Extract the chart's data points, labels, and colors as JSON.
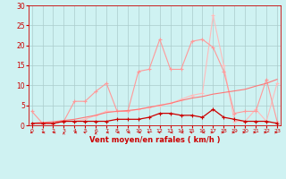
{
  "background_color": "#cff2f2",
  "grid_color": "#aacccc",
  "x": [
    0,
    1,
    2,
    3,
    4,
    5,
    6,
    7,
    8,
    9,
    10,
    11,
    12,
    13,
    14,
    15,
    16,
    17,
    18,
    19,
    20,
    21,
    22,
    23
  ],
  "series_rafales": [
    3.5,
    0.5,
    0.5,
    1.0,
    6.0,
    6.0,
    8.5,
    10.5,
    3.5,
    3.5,
    13.5,
    14.0,
    21.5,
    14.0,
    14.0,
    21.0,
    21.5,
    19.5,
    13.5,
    3.0,
    3.5,
    3.5,
    11.5,
    1.0
  ],
  "series_moy": [
    0.5,
    0.5,
    0.5,
    1.0,
    1.0,
    1.0,
    1.0,
    1.0,
    1.5,
    1.5,
    1.5,
    2.0,
    3.0,
    3.0,
    2.5,
    2.5,
    2.0,
    4.0,
    2.0,
    1.5,
    1.0,
    1.0,
    1.0,
    0.5
  ],
  "series_trend": [
    0.5,
    0.7,
    0.9,
    1.2,
    1.5,
    2.0,
    2.5,
    3.2,
    3.5,
    3.7,
    4.0,
    4.5,
    5.0,
    5.5,
    6.2,
    6.8,
    7.2,
    7.8,
    8.2,
    8.6,
    9.0,
    9.8,
    10.5,
    11.5
  ],
  "series_peak": [
    0.5,
    0.5,
    0.5,
    1.0,
    1.0,
    1.5,
    2.5,
    3.5,
    3.5,
    3.5,
    4.0,
    4.5,
    5.0,
    5.5,
    6.5,
    7.5,
    8.0,
    27.5,
    15.0,
    1.0,
    1.0,
    4.0,
    1.0,
    10.5
  ],
  "color_rafales": "#ff9999",
  "color_moy": "#cc0000",
  "color_trend": "#ff7777",
  "color_peak": "#ffbbbb",
  "ylim": [
    0,
    30
  ],
  "xlim_min": -0.3,
  "xlim_max": 23.3,
  "yticks": [
    0,
    5,
    10,
    15,
    20,
    25,
    30
  ],
  "xlabel": "Vent moyen/en rafales ( km/h )",
  "xlabel_color": "#cc0000",
  "tick_color": "#cc0000",
  "ylabel_color": "#cc0000"
}
